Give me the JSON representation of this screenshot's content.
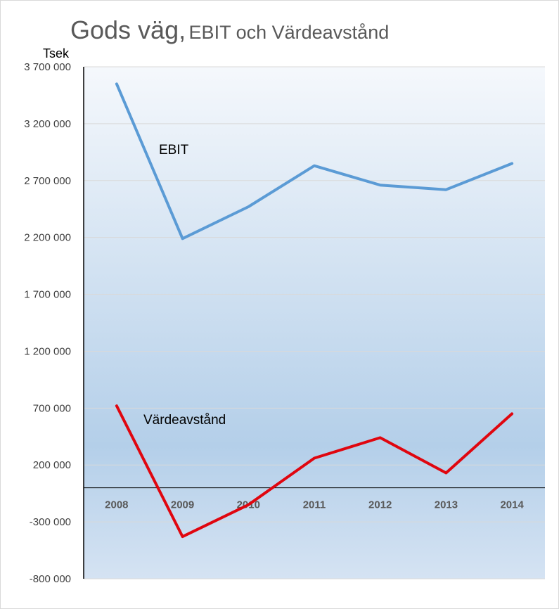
{
  "chart_data": {
    "type": "line",
    "title": "Gods väg,",
    "subtitle": "EBIT och Värdeavstånd",
    "ylabel": "Tsek",
    "xlabel": "",
    "categories": [
      "2008",
      "2009",
      "2010",
      "2011",
      "2012",
      "2013",
      "2014"
    ],
    "ylim": [
      -800000,
      3700000
    ],
    "yticks": [
      3700000,
      3200000,
      2700000,
      2200000,
      1700000,
      1200000,
      700000,
      200000,
      -300000,
      -800000
    ],
    "ytick_labels": [
      "3 700 000",
      "3 200 000",
      "2 700 000",
      "2 200 000",
      "1 700 000",
      "1 200 000",
      "700 000",
      "200 000",
      "-300 000",
      "-800 000"
    ],
    "grid": true,
    "series": [
      {
        "name": "EBIT",
        "color": "#5b9bd5",
        "values": [
          3550000,
          2190000,
          2470000,
          2830000,
          2660000,
          2620000,
          2850000
        ]
      },
      {
        "name": "Värdeavstånd",
        "color": "#e0060f",
        "values": [
          720000,
          -430000,
          -150000,
          260000,
          440000,
          130000,
          650000
        ]
      }
    ],
    "annotations": [
      "EBIT",
      "Värdeavstånd"
    ]
  }
}
